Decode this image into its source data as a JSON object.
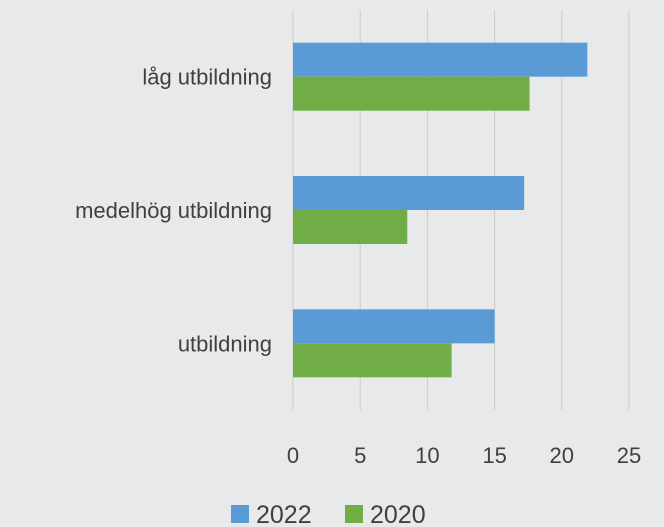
{
  "chart_data": {
    "type": "bar",
    "orientation": "horizontal",
    "categories": [
      "låg utbildning",
      "medelhög utbildning",
      "utbildning"
    ],
    "series": [
      {
        "name": "2022",
        "color": "#5b9bd5",
        "values": [
          21.9,
          17.2,
          15.0
        ]
      },
      {
        "name": "2020",
        "color": "#70ad47",
        "values": [
          17.6,
          8.5,
          11.8
        ]
      }
    ],
    "xlim": [
      0,
      25
    ],
    "xticks": [
      0,
      5,
      10,
      15,
      20,
      25
    ],
    "grid": true,
    "legend": "bottom",
    "title": "",
    "xlabel": "",
    "ylabel": ""
  }
}
